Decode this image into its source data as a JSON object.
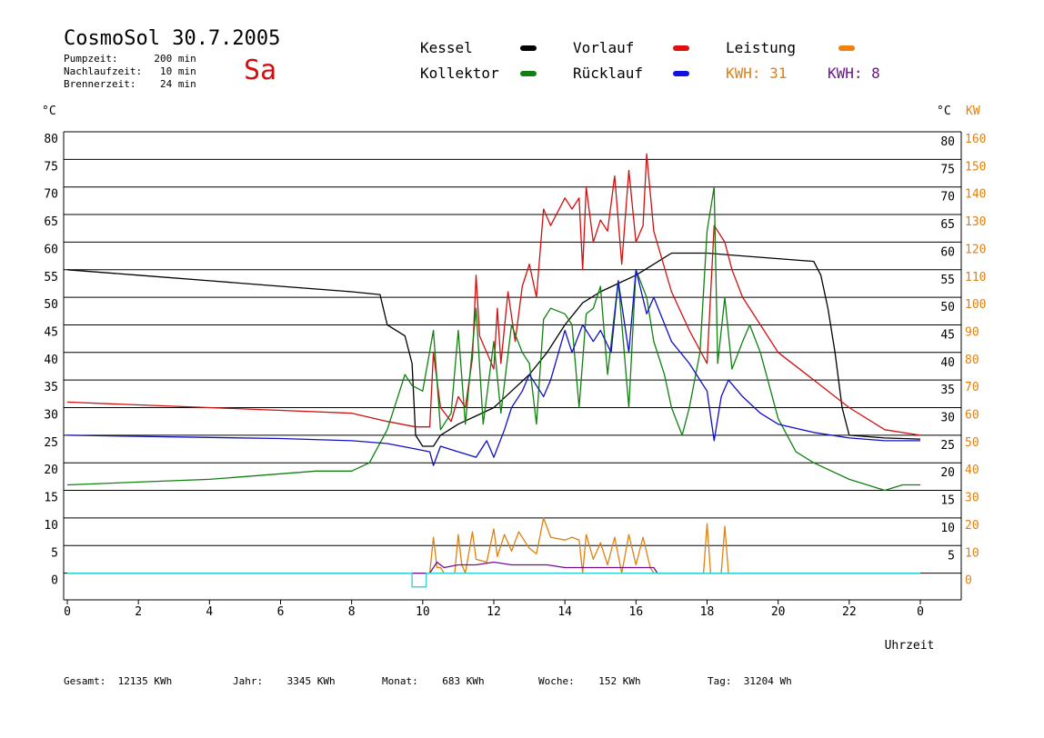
{
  "header": {
    "title": "CosmoSol 30.7.2005",
    "day": "Sa",
    "info": [
      {
        "label": "Pumpzeit:",
        "value": "200 min"
      },
      {
        "label": "Nachlaufzeit:",
        "value": "10 min"
      },
      {
        "label": "Brennerzeit:",
        "value": "24 min"
      }
    ]
  },
  "legend": {
    "kessel": {
      "label": "Kessel",
      "color": "#000000"
    },
    "vorlauf": {
      "label": "Vorlauf",
      "color": "#e01010"
    },
    "leistung": {
      "label": "Leistung",
      "color": "#f08010"
    },
    "kollektor": {
      "label": "Kollektor",
      "color": "#108010"
    },
    "ruecklauf": {
      "label": "Rücklauf",
      "color": "#1010e0"
    },
    "kwh_orange": "KWH: 31",
    "kwh_purple": "KWH: 8"
  },
  "footer": {
    "gesamt": {
      "label": "Gesamt:",
      "value": "12135 KWh"
    },
    "jahr": {
      "label": "Jahr:",
      "value": "3345 KWh"
    },
    "monat": {
      "label": "Monat:",
      "value": "683 KWh"
    },
    "woche": {
      "label": "Woche:",
      "value": "152 KWh"
    },
    "tag": {
      "label": "Tag:",
      "value": "31204 Wh"
    }
  },
  "chart_data": {
    "type": "line",
    "xlabel": "Uhrzeit",
    "ylabel_left": "°C",
    "ylabel_right": "°C",
    "ylabel_right2": "KW",
    "xlim": [
      0,
      24
    ],
    "x_ticks": [
      "0",
      "2",
      "4",
      "6",
      "8",
      "10",
      "12",
      "14",
      "16",
      "18",
      "20",
      "22",
      "0"
    ],
    "y_ticks_left": [
      "80",
      "75",
      "70",
      "65",
      "60",
      "55",
      "50",
      "45",
      "40",
      "35",
      "30",
      "25",
      "20",
      "15",
      "10",
      "5",
      "0"
    ],
    "y_ticks_right": [
      "80",
      "75",
      "70",
      "65",
      "60",
      "55",
      "50",
      "45",
      "40",
      "35",
      "30",
      "25",
      "20",
      "15",
      "10",
      "5"
    ],
    "y_ticks_kw": [
      "160",
      "150",
      "140",
      "130",
      "120",
      "110",
      "100",
      "90",
      "80",
      "70",
      "60",
      "50",
      "40",
      "30",
      "20",
      "10",
      "0"
    ],
    "colors": {
      "kessel": "#000000",
      "vorlauf": "#d01010",
      "kollektor": "#108010",
      "ruecklauf": "#1010c0",
      "leistung": "#e08010",
      "purple": "#701090",
      "cyan": "#30d0d0"
    },
    "series": [
      {
        "name": "Kessel",
        "points": [
          [
            0,
            55
          ],
          [
            2,
            54
          ],
          [
            4,
            53
          ],
          [
            6,
            52
          ],
          [
            8,
            51
          ],
          [
            8.8,
            50.5
          ],
          [
            9,
            45
          ],
          [
            9.5,
            43
          ],
          [
            9.7,
            38
          ],
          [
            9.8,
            25
          ],
          [
            10,
            23
          ],
          [
            10.3,
            23
          ],
          [
            10.5,
            25
          ],
          [
            11,
            27
          ],
          [
            11.5,
            28.5
          ],
          [
            12,
            30
          ],
          [
            12.5,
            33
          ],
          [
            13,
            36
          ],
          [
            13.5,
            40
          ],
          [
            14,
            45
          ],
          [
            14.5,
            49
          ],
          [
            15,
            51
          ],
          [
            15.5,
            52.5
          ],
          [
            16,
            54
          ],
          [
            16.5,
            56
          ],
          [
            17,
            58
          ],
          [
            18,
            58
          ],
          [
            19,
            57.5
          ],
          [
            20,
            57
          ],
          [
            21,
            56.5
          ],
          [
            21.2,
            54
          ],
          [
            21.4,
            48
          ],
          [
            21.6,
            40
          ],
          [
            21.8,
            30
          ],
          [
            22,
            25
          ],
          [
            23,
            24.5
          ],
          [
            24,
            24.3
          ]
        ]
      },
      {
        "name": "Vorlauf",
        "points": [
          [
            0,
            31
          ],
          [
            2,
            30.5
          ],
          [
            4,
            30
          ],
          [
            6,
            29.5
          ],
          [
            8,
            29
          ],
          [
            9,
            27.5
          ],
          [
            9.8,
            26.5
          ],
          [
            10.2,
            26.5
          ],
          [
            10.3,
            40
          ],
          [
            10.5,
            30
          ],
          [
            10.8,
            27.5
          ],
          [
            11,
            32
          ],
          [
            11.2,
            30
          ],
          [
            11.4,
            39
          ],
          [
            11.5,
            54
          ],
          [
            11.6,
            43
          ],
          [
            11.8,
            40
          ],
          [
            12,
            37
          ],
          [
            12.1,
            48
          ],
          [
            12.2,
            38
          ],
          [
            12.4,
            51
          ],
          [
            12.6,
            42
          ],
          [
            12.8,
            52
          ],
          [
            13,
            56
          ],
          [
            13.2,
            50
          ],
          [
            13.4,
            66
          ],
          [
            13.6,
            63
          ],
          [
            14,
            68
          ],
          [
            14.2,
            66
          ],
          [
            14.4,
            68
          ],
          [
            14.5,
            55
          ],
          [
            14.6,
            70
          ],
          [
            14.8,
            60
          ],
          [
            15,
            64
          ],
          [
            15.2,
            62
          ],
          [
            15.4,
            72
          ],
          [
            15.6,
            56
          ],
          [
            15.8,
            73
          ],
          [
            16,
            60
          ],
          [
            16.2,
            63
          ],
          [
            16.3,
            76
          ],
          [
            16.5,
            62
          ],
          [
            17,
            51
          ],
          [
            17.5,
            44
          ],
          [
            18,
            38
          ],
          [
            18.2,
            63
          ],
          [
            18.5,
            60
          ],
          [
            18.7,
            55
          ],
          [
            19,
            50
          ],
          [
            19.5,
            45
          ],
          [
            20,
            40
          ],
          [
            21,
            35
          ],
          [
            22,
            30
          ],
          [
            23,
            26
          ],
          [
            24,
            25
          ]
        ]
      },
      {
        "name": "Kollektor",
        "points": [
          [
            0,
            16
          ],
          [
            2,
            16.5
          ],
          [
            4,
            17
          ],
          [
            6,
            18
          ],
          [
            7,
            18.5
          ],
          [
            8,
            18.5
          ],
          [
            8.5,
            20
          ],
          [
            9,
            26
          ],
          [
            9.3,
            32
          ],
          [
            9.5,
            36
          ],
          [
            9.7,
            34
          ],
          [
            10,
            33
          ],
          [
            10.3,
            44
          ],
          [
            10.5,
            26
          ],
          [
            10.8,
            29
          ],
          [
            11,
            44
          ],
          [
            11.2,
            27
          ],
          [
            11.5,
            48
          ],
          [
            11.7,
            27
          ],
          [
            12,
            42
          ],
          [
            12.2,
            29
          ],
          [
            12.5,
            45
          ],
          [
            12.8,
            40
          ],
          [
            13,
            38
          ],
          [
            13.2,
            27
          ],
          [
            13.4,
            46
          ],
          [
            13.6,
            48
          ],
          [
            14,
            47
          ],
          [
            14.2,
            45
          ],
          [
            14.4,
            30
          ],
          [
            14.6,
            47
          ],
          [
            14.8,
            48
          ],
          [
            15,
            52
          ],
          [
            15.2,
            36
          ],
          [
            15.5,
            53
          ],
          [
            15.8,
            30
          ],
          [
            16,
            55
          ],
          [
            16.3,
            50
          ],
          [
            16.5,
            42
          ],
          [
            16.8,
            36
          ],
          [
            17,
            30
          ],
          [
            17.3,
            25
          ],
          [
            17.5,
            30
          ],
          [
            17.8,
            40
          ],
          [
            18,
            62
          ],
          [
            18.2,
            70
          ],
          [
            18.3,
            38
          ],
          [
            18.5,
            50
          ],
          [
            18.7,
            37
          ],
          [
            19,
            42
          ],
          [
            19.2,
            45
          ],
          [
            19.5,
            40
          ],
          [
            20,
            28
          ],
          [
            20.5,
            22
          ],
          [
            21,
            20
          ],
          [
            22,
            17
          ],
          [
            23,
            15
          ],
          [
            23.5,
            16
          ],
          [
            24,
            16
          ]
        ]
      },
      {
        "name": "Rücklauf",
        "points": [
          [
            0,
            25
          ],
          [
            2,
            24.8
          ],
          [
            4,
            24.6
          ],
          [
            6,
            24.4
          ],
          [
            8,
            24
          ],
          [
            9,
            23.5
          ],
          [
            9.8,
            22.5
          ],
          [
            10.2,
            22
          ],
          [
            10.3,
            19.5
          ],
          [
            10.5,
            23
          ],
          [
            11,
            22
          ],
          [
            11.5,
            21
          ],
          [
            11.8,
            24
          ],
          [
            12,
            21
          ],
          [
            12.3,
            26
          ],
          [
            12.5,
            30
          ],
          [
            12.8,
            33
          ],
          [
            13,
            36
          ],
          [
            13.2,
            34
          ],
          [
            13.4,
            32
          ],
          [
            13.6,
            35
          ],
          [
            14,
            44
          ],
          [
            14.2,
            40
          ],
          [
            14.5,
            45
          ],
          [
            14.8,
            42
          ],
          [
            15,
            44
          ],
          [
            15.3,
            40
          ],
          [
            15.5,
            53
          ],
          [
            15.8,
            40
          ],
          [
            16,
            55
          ],
          [
            16.3,
            47
          ],
          [
            16.5,
            50
          ],
          [
            17,
            42
          ],
          [
            17.5,
            38
          ],
          [
            18,
            33
          ],
          [
            18.2,
            24
          ],
          [
            18.4,
            32
          ],
          [
            18.6,
            35
          ],
          [
            19,
            32
          ],
          [
            19.5,
            29
          ],
          [
            20,
            27
          ],
          [
            21,
            25.5
          ],
          [
            22,
            24.5
          ],
          [
            23,
            24
          ],
          [
            24,
            24
          ]
        ]
      },
      {
        "name": "Leistung",
        "axis": "kw",
        "points": [
          [
            0,
            0
          ],
          [
            10.2,
            0
          ],
          [
            10.3,
            13
          ],
          [
            10.4,
            2
          ],
          [
            10.5,
            2
          ],
          [
            10.6,
            0
          ],
          [
            10.9,
            0
          ],
          [
            11,
            14
          ],
          [
            11.1,
            3
          ],
          [
            11.2,
            0
          ],
          [
            11.4,
            15
          ],
          [
            11.5,
            5
          ],
          [
            11.8,
            4
          ],
          [
            12,
            16
          ],
          [
            12.1,
            6
          ],
          [
            12.3,
            14
          ],
          [
            12.5,
            8
          ],
          [
            12.7,
            15
          ],
          [
            13,
            9
          ],
          [
            13.2,
            7
          ],
          [
            13.4,
            20
          ],
          [
            13.6,
            13
          ],
          [
            14,
            12
          ],
          [
            14.2,
            13
          ],
          [
            14.4,
            12
          ],
          [
            14.5,
            0
          ],
          [
            14.6,
            14
          ],
          [
            14.8,
            5
          ],
          [
            15,
            11
          ],
          [
            15.2,
            3
          ],
          [
            15.4,
            13
          ],
          [
            15.6,
            0
          ],
          [
            15.8,
            14
          ],
          [
            16,
            3
          ],
          [
            16.2,
            13
          ],
          [
            16.4,
            2
          ],
          [
            16.5,
            0
          ],
          [
            17.9,
            0
          ],
          [
            18,
            18
          ],
          [
            18.1,
            0
          ],
          [
            18.4,
            0
          ],
          [
            18.5,
            17
          ],
          [
            18.6,
            0
          ],
          [
            24,
            0
          ]
        ]
      },
      {
        "name": "Pumpe",
        "axis": "kw",
        "points": [
          [
            0,
            0
          ],
          [
            10.2,
            0
          ],
          [
            10.4,
            4
          ],
          [
            10.6,
            2
          ],
          [
            11,
            3
          ],
          [
            11.5,
            3
          ],
          [
            12,
            4
          ],
          [
            12.5,
            3
          ],
          [
            13,
            3
          ],
          [
            13.5,
            3
          ],
          [
            14,
            2
          ],
          [
            14.5,
            2
          ],
          [
            15,
            2
          ],
          [
            15.5,
            2
          ],
          [
            16,
            2
          ],
          [
            16.5,
            2
          ],
          [
            16.6,
            0
          ],
          [
            24,
            0
          ]
        ]
      },
      {
        "name": "Brenner",
        "axis": "kw",
        "points": [
          [
            0,
            0
          ],
          [
            9.7,
            0
          ],
          [
            9.7,
            -5
          ],
          [
            10.1,
            -5
          ],
          [
            10.1,
            0
          ],
          [
            24,
            0
          ]
        ]
      }
    ]
  }
}
